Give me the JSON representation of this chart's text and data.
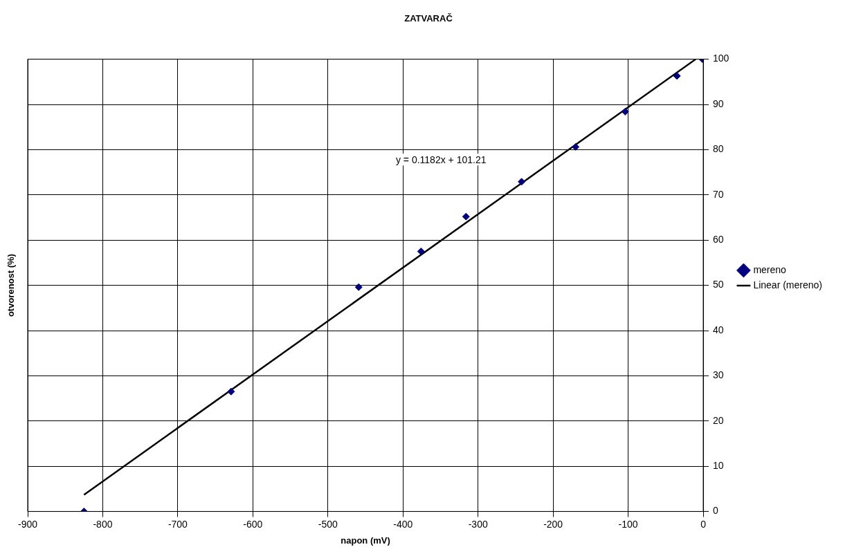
{
  "chart_data": {
    "type": "scatter",
    "title": "ZATVARAČ",
    "xlabel": "napon (mV)",
    "ylabel": "otvorenost (%)",
    "xlim": [
      -900,
      0
    ],
    "xticks": [
      -900,
      -800,
      -700,
      -600,
      -500,
      -400,
      -300,
      -200,
      -100,
      0
    ],
    "ylim": [
      0,
      100
    ],
    "yticks": [
      0,
      10,
      20,
      30,
      40,
      50,
      60,
      70,
      80,
      90,
      100
    ],
    "grid": true,
    "legend": "right",
    "marker": "diamond",
    "annotations": [
      "y = 0.1182x + 101.21"
    ],
    "series": [
      {
        "name": "mereno",
        "color": "#000080",
        "x": [
          -825,
          -629,
          -459,
          -376,
          -316,
          -242,
          -170,
          -104,
          -35,
          -1
        ],
        "values": [
          0,
          26.5,
          49.6,
          57.5,
          65.2,
          72.9,
          80.6,
          88.4,
          96.3,
          100
        ]
      },
      {
        "name": "Linear (mereno)",
        "type": "line",
        "color": "#000000",
        "marker": "none",
        "x": [
          -825,
          -10
        ],
        "values": [
          3.7,
          100.0
        ]
      }
    ]
  }
}
